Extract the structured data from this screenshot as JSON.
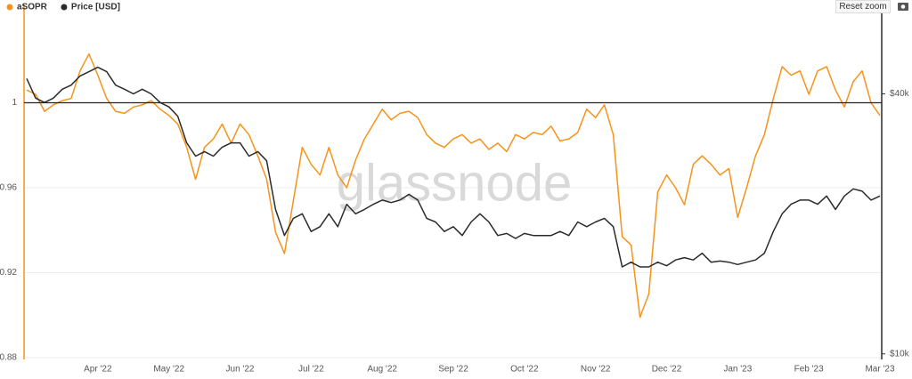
{
  "ui": {
    "reset_zoom": "Reset zoom"
  },
  "chart_data": {
    "type": "line",
    "watermark": "glassnode",
    "categories": [
      null,
      null,
      null,
      null,
      null,
      null,
      null,
      null,
      "Apr '22",
      null,
      null,
      null,
      null,
      null,
      null,
      null,
      "May '22",
      null,
      null,
      null,
      null,
      null,
      null,
      null,
      "Jun '22",
      null,
      null,
      null,
      null,
      null,
      null,
      null,
      "Jul '22",
      null,
      null,
      null,
      null,
      null,
      null,
      null,
      "Aug '22",
      null,
      null,
      null,
      null,
      null,
      null,
      null,
      "Sep '22",
      null,
      null,
      null,
      null,
      null,
      null,
      null,
      "Oct '22",
      null,
      null,
      null,
      null,
      null,
      null,
      null,
      "Nov '22",
      null,
      null,
      null,
      null,
      null,
      null,
      null,
      "Dec '22",
      null,
      null,
      null,
      null,
      null,
      null,
      null,
      "Jan '23",
      null,
      null,
      null,
      null,
      null,
      null,
      null,
      "Feb '23",
      null,
      null,
      null,
      null,
      null,
      null,
      null,
      "Mar '23"
    ],
    "series": [
      {
        "name": "aSOPR",
        "color": "#f7931a",
        "axis": "y",
        "values": [
          1.006,
          1.004,
          0.996,
          0.999,
          1.001,
          1.002,
          1.015,
          1.023,
          1.013,
          1.002,
          0.996,
          0.995,
          0.998,
          0.999,
          1.001,
          0.997,
          0.994,
          0.99,
          0.979,
          0.964,
          0.979,
          0.983,
          0.99,
          0.981,
          0.99,
          0.985,
          0.975,
          0.964,
          0.939,
          0.929,
          0.954,
          0.979,
          0.971,
          0.966,
          0.979,
          0.966,
          0.96,
          0.973,
          0.983,
          0.99,
          0.997,
          0.992,
          0.995,
          0.996,
          0.993,
          0.985,
          0.981,
          0.979,
          0.983,
          0.985,
          0.981,
          0.983,
          0.978,
          0.981,
          0.977,
          0.985,
          0.983,
          0.986,
          0.985,
          0.989,
          0.982,
          0.983,
          0.986,
          0.997,
          0.993,
          0.999,
          0.985,
          0.937,
          0.933,
          0.899,
          0.91,
          0.958,
          0.966,
          0.96,
          0.952,
          0.971,
          0.975,
          0.971,
          0.966,
          0.969,
          0.946,
          0.96,
          0.975,
          0.985,
          1.002,
          1.017,
          1.013,
          1.015,
          1.004,
          1.015,
          1.017,
          1.006,
          0.998,
          1.01,
          1.015,
          1.0,
          0.994
        ]
      },
      {
        "name": "Price [USD]",
        "color": "#2b2b2b",
        "axis": "y2",
        "values": [
          43400,
          39100,
          38200,
          39100,
          41000,
          41900,
          44000,
          45000,
          46100,
          45000,
          41900,
          41000,
          40000,
          41000,
          40000,
          38200,
          37300,
          35500,
          30800,
          28700,
          29400,
          28700,
          30100,
          30800,
          30800,
          28700,
          29400,
          28000,
          21600,
          18800,
          20600,
          21100,
          19200,
          19700,
          21100,
          19700,
          22200,
          21100,
          21600,
          22200,
          22700,
          22400,
          22700,
          23400,
          22700,
          20600,
          20200,
          19200,
          19700,
          18800,
          20200,
          21100,
          20200,
          18800,
          19000,
          18500,
          19000,
          18800,
          18800,
          18800,
          19200,
          18800,
          20200,
          19700,
          20200,
          20600,
          19700,
          15900,
          16300,
          15900,
          15900,
          16300,
          16000,
          16500,
          16700,
          16500,
          17100,
          16300,
          16400,
          16300,
          16100,
          16300,
          16500,
          17100,
          19200,
          21100,
          22200,
          22700,
          22700,
          22200,
          23200,
          21600,
          23200,
          24100,
          23800,
          22700,
          23200
        ]
      }
    ],
    "ylim": [
      0.88,
      1.04
    ],
    "yticks": [
      0.88,
      0.92,
      0.96,
      1
    ],
    "y2lim": [
      9800,
      60000
    ],
    "y2log": true,
    "y2ticks": [
      {
        "value": 10000,
        "label": "$10k"
      },
      {
        "value": 40000,
        "label": "$40k"
      }
    ],
    "hline": 1,
    "grid": true
  }
}
